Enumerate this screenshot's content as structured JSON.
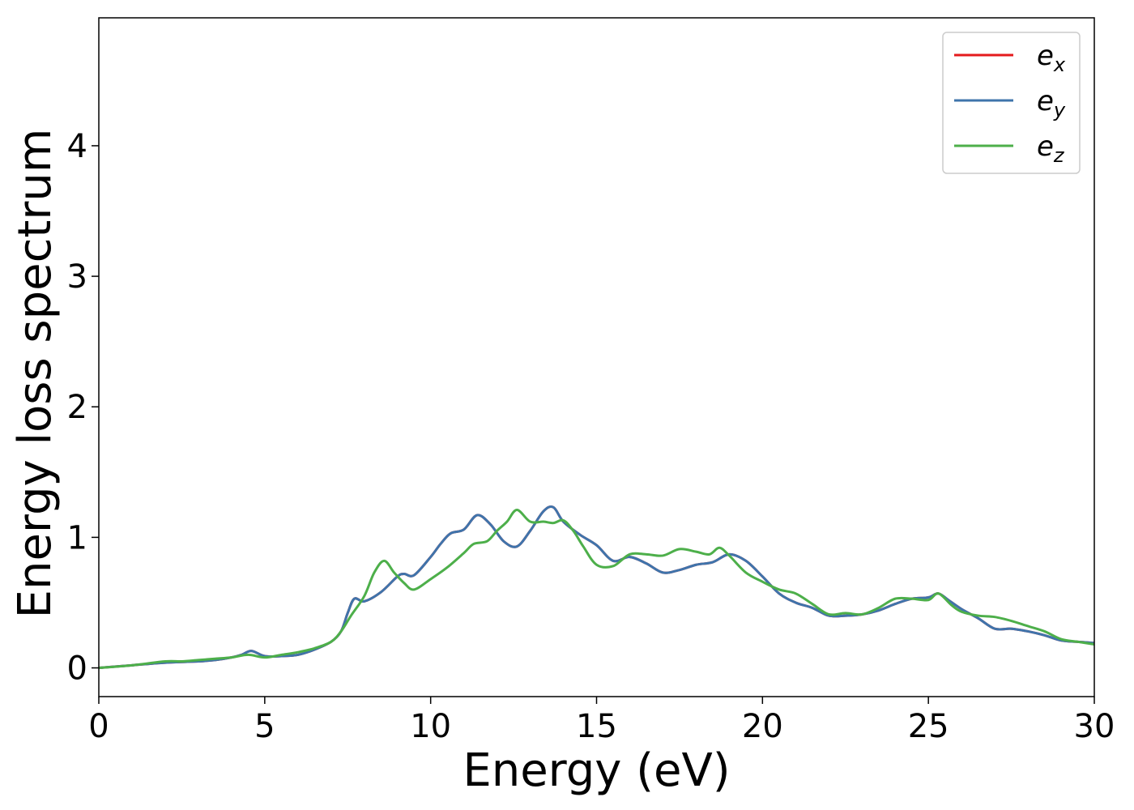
{
  "chart_data": {
    "type": "line",
    "xlabel": "Energy (eV)",
    "ylabel": "Energy loss spectrum",
    "xlim": [
      0,
      30
    ],
    "ylim": [
      -0.22,
      4.98
    ],
    "x_ticks": [
      "0",
      "5",
      "10",
      "15",
      "20",
      "25",
      "30"
    ],
    "y_ticks": [
      "0",
      "1",
      "2",
      "3",
      "4"
    ],
    "grid": false,
    "legend_position": "top-right",
    "series": [
      {
        "name": "e",
        "subscript": "x",
        "color": "#e41a1c",
        "x": [
          0,
          1,
          2,
          3,
          3.5,
          4,
          4.3,
          4.6,
          5,
          5.5,
          6,
          6.5,
          7,
          7.3,
          7.5,
          7.7,
          8,
          8.5,
          9,
          9.2,
          9.5,
          10,
          10.3,
          10.6,
          11,
          11.4,
          11.8,
          12.2,
          12.6,
          13,
          13.4,
          13.7,
          14,
          14.5,
          15,
          15.5,
          16,
          16.5,
          17,
          17.5,
          18,
          18.5,
          19,
          19.5,
          20,
          20.5,
          21,
          21.5,
          22,
          22.5,
          23,
          23.5,
          24,
          24.5,
          25,
          25.3,
          25.6,
          26,
          26.5,
          27,
          27.5,
          28,
          28.5,
          29,
          29.5,
          30
        ],
        "y": [
          0,
          0.02,
          0.04,
          0.05,
          0.06,
          0.08,
          0.1,
          0.13,
          0.09,
          0.09,
          0.1,
          0.14,
          0.2,
          0.28,
          0.42,
          0.53,
          0.51,
          0.58,
          0.7,
          0.72,
          0.71,
          0.85,
          0.95,
          1.03,
          1.06,
          1.17,
          1.1,
          0.97,
          0.93,
          1.05,
          1.2,
          1.23,
          1.12,
          1.02,
          0.94,
          0.82,
          0.85,
          0.8,
          0.73,
          0.75,
          0.79,
          0.81,
          0.87,
          0.82,
          0.7,
          0.57,
          0.5,
          0.46,
          0.4,
          0.4,
          0.41,
          0.44,
          0.49,
          0.53,
          0.54,
          0.57,
          0.52,
          0.45,
          0.38,
          0.3,
          0.3,
          0.28,
          0.25,
          0.21,
          0.2,
          0.19
        ]
      },
      {
        "name": "e",
        "subscript": "y",
        "color": "#3f74ab",
        "x": [
          0,
          1,
          2,
          3,
          3.5,
          4,
          4.3,
          4.6,
          5,
          5.5,
          6,
          6.5,
          7,
          7.3,
          7.5,
          7.7,
          8,
          8.5,
          9,
          9.2,
          9.5,
          10,
          10.3,
          10.6,
          11,
          11.4,
          11.8,
          12.2,
          12.6,
          13,
          13.4,
          13.7,
          14,
          14.5,
          15,
          15.5,
          16,
          16.5,
          17,
          17.5,
          18,
          18.5,
          19,
          19.5,
          20,
          20.5,
          21,
          21.5,
          22,
          22.5,
          23,
          23.5,
          24,
          24.5,
          25,
          25.3,
          25.6,
          26,
          26.5,
          27,
          27.5,
          28,
          28.5,
          29,
          29.5,
          30
        ],
        "y": [
          0,
          0.02,
          0.04,
          0.05,
          0.06,
          0.08,
          0.1,
          0.13,
          0.09,
          0.09,
          0.1,
          0.14,
          0.2,
          0.28,
          0.42,
          0.53,
          0.51,
          0.58,
          0.7,
          0.72,
          0.71,
          0.85,
          0.95,
          1.03,
          1.06,
          1.17,
          1.1,
          0.97,
          0.93,
          1.05,
          1.2,
          1.23,
          1.12,
          1.02,
          0.94,
          0.82,
          0.85,
          0.8,
          0.73,
          0.75,
          0.79,
          0.81,
          0.87,
          0.82,
          0.7,
          0.57,
          0.5,
          0.46,
          0.4,
          0.4,
          0.41,
          0.44,
          0.49,
          0.53,
          0.54,
          0.57,
          0.52,
          0.45,
          0.38,
          0.3,
          0.3,
          0.28,
          0.25,
          0.21,
          0.2,
          0.19
        ]
      },
      {
        "name": "e",
        "subscript": "z",
        "color": "#4daf4a",
        "x": [
          0,
          1,
          2,
          2.5,
          3,
          3.5,
          4,
          4.5,
          5,
          5.5,
          6,
          6.5,
          7,
          7.3,
          7.6,
          8,
          8.3,
          8.6,
          8.9,
          9.2,
          9.5,
          10,
          10.5,
          11,
          11.3,
          11.7,
          12,
          12.3,
          12.6,
          13,
          13.4,
          13.7,
          14,
          14.3,
          14.6,
          15,
          15.5,
          16,
          16.5,
          17,
          17.5,
          18,
          18.4,
          18.7,
          19,
          19.5,
          20,
          20.5,
          21,
          21.5,
          22,
          22.5,
          23,
          23.5,
          24,
          24.5,
          25,
          25.3,
          25.7,
          26,
          26.5,
          27,
          27.5,
          28,
          28.5,
          29,
          29.5,
          30
        ],
        "y": [
          0,
          0.02,
          0.05,
          0.05,
          0.06,
          0.07,
          0.08,
          0.1,
          0.08,
          0.1,
          0.12,
          0.15,
          0.2,
          0.28,
          0.4,
          0.55,
          0.73,
          0.82,
          0.73,
          0.65,
          0.6,
          0.68,
          0.77,
          0.88,
          0.95,
          0.97,
          1.05,
          1.12,
          1.21,
          1.12,
          1.12,
          1.11,
          1.13,
          1.05,
          0.93,
          0.79,
          0.78,
          0.87,
          0.87,
          0.86,
          0.91,
          0.89,
          0.87,
          0.92,
          0.86,
          0.73,
          0.66,
          0.6,
          0.57,
          0.49,
          0.41,
          0.42,
          0.41,
          0.46,
          0.53,
          0.53,
          0.52,
          0.57,
          0.48,
          0.43,
          0.4,
          0.39,
          0.36,
          0.32,
          0.28,
          0.22,
          0.2,
          0.18
        ]
      }
    ]
  }
}
